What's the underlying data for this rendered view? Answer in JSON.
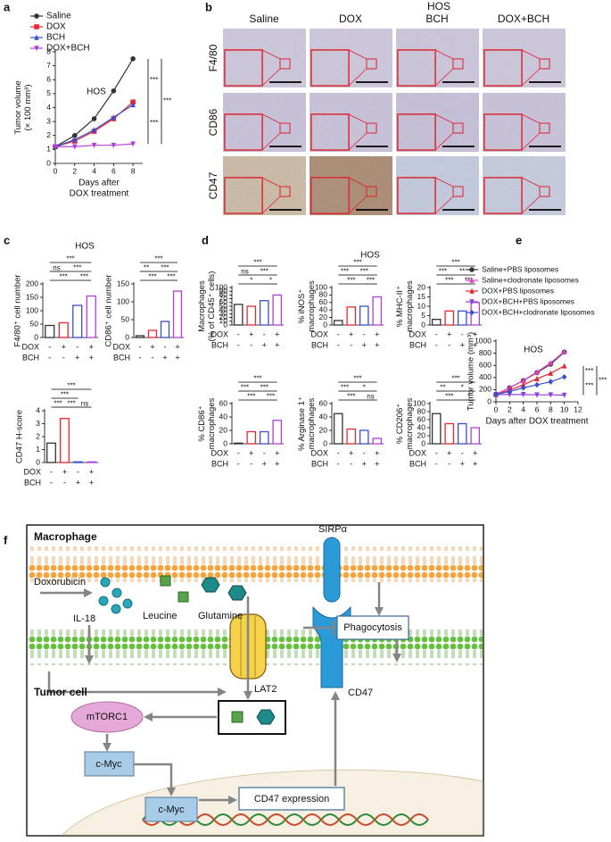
{
  "panel_labels": [
    "a",
    "b",
    "c",
    "d",
    "e",
    "f"
  ],
  "panel_titles": {
    "c": "HOS",
    "d": "HOS"
  },
  "micrographs": {
    "title": "HOS",
    "columns": [
      "Saline",
      "DOX",
      "BCH",
      "DOX+BCH"
    ],
    "rows": [
      "F4/80",
      "CD86",
      "CD47"
    ]
  },
  "chart_data": [
    {
      "type": "line",
      "title": "HOS",
      "x": [
        0,
        2,
        4,
        6,
        8
      ],
      "xlim": [
        0,
        9
      ],
      "xticks": [
        0,
        2,
        4,
        6,
        8
      ],
      "ylim": [
        0,
        8
      ],
      "yticks": [
        0,
        1,
        2,
        3,
        4,
        5,
        6,
        7,
        8
      ],
      "y_label": [
        "Tumor volume",
        "(× 100 mm³)"
      ],
      "x_label": [
        "Days after",
        "DOX treatment"
      ],
      "series": [
        {
          "name": "Saline",
          "color": "#333333",
          "marker": "circle",
          "values": [
            1.2,
            2.0,
            3.2,
            5.2,
            7.5
          ]
        },
        {
          "name": "DOX",
          "color": "#e8262d",
          "marker": "square",
          "values": [
            1.2,
            1.6,
            2.3,
            3.2,
            4.4
          ]
        },
        {
          "name": "BCH",
          "color": "#3a4fd0",
          "marker": "triangle",
          "values": [
            1.2,
            1.7,
            2.4,
            3.3,
            4.2
          ]
        },
        {
          "name": "DOX+BCH",
          "color": "#b040d8",
          "marker": "triangle-down",
          "values": [
            1.2,
            1.2,
            1.3,
            1.3,
            1.4
          ]
        }
      ],
      "significance": [
        {
          "series": [
            0,
            1
          ],
          "label": "***"
        },
        {
          "series": [
            1,
            3
          ],
          "label": "***"
        },
        {
          "series": [
            0,
            3
          ],
          "label": "***"
        }
      ]
    },
    {
      "type": "bar",
      "y_label": [
        "F4/80⁺ cell number"
      ],
      "values": [
        45,
        55,
        120,
        155
      ],
      "colors": [
        "#333333",
        "#e8262d",
        "#3a4fd0",
        "#b040d8"
      ],
      "ylim": [
        0,
        200
      ],
      "yticks": [
        0,
        50,
        100,
        150,
        200
      ],
      "factors": [
        {
          "name": "DOX",
          "signs": [
            "-",
            "+",
            "-",
            "+"
          ]
        },
        {
          "name": "BCH",
          "signs": [
            "-",
            "-",
            "+",
            "+"
          ]
        }
      ],
      "brackets": [
        {
          "from": 0,
          "to": 2,
          "label": "***"
        },
        {
          "from": 2,
          "to": 3,
          "label": "***"
        },
        {
          "from": 0,
          "to": 1,
          "label": "ns"
        },
        {
          "from": 1,
          "to": 3,
          "label": "***"
        },
        {
          "from": 0,
          "to": 3,
          "label": "***"
        }
      ]
    },
    {
      "type": "bar",
      "y_label": [
        "CD86⁺ cell number"
      ],
      "values": [
        5,
        20,
        45,
        130
      ],
      "colors": [
        "#333333",
        "#e8262d",
        "#3a4fd0",
        "#b040d8"
      ],
      "ylim": [
        0,
        150
      ],
      "yticks": [
        0,
        50,
        100,
        150
      ],
      "factors": [
        {
          "name": "DOX",
          "signs": [
            "-",
            "+",
            "-",
            "+"
          ]
        },
        {
          "name": "BCH",
          "signs": [
            "-",
            "-",
            "+",
            "+"
          ]
        }
      ],
      "brackets": [
        {
          "from": 0,
          "to": 2,
          "label": "***"
        },
        {
          "from": 2,
          "to": 3,
          "label": "***"
        },
        {
          "from": 0,
          "to": 1,
          "label": "**"
        },
        {
          "from": 1,
          "to": 3,
          "label": "***"
        },
        {
          "from": 0,
          "to": 3,
          "label": "***"
        }
      ]
    },
    {
      "type": "bar",
      "y_label": [
        "CD47 H-score"
      ],
      "values": [
        1.5,
        3.4,
        0.05,
        0.05
      ],
      "colors": [
        "#333333",
        "#e8262d",
        "#3a4fd0",
        "#b040d8"
      ],
      "ylim": [
        0,
        4
      ],
      "yticks": [
        0,
        1,
        2,
        3,
        4
      ],
      "factors": [
        {
          "name": "DOX",
          "signs": [
            "-",
            "+",
            "-",
            "+"
          ]
        },
        {
          "name": "BCH",
          "signs": [
            "-",
            "-",
            "+",
            "+"
          ]
        }
      ],
      "brackets": [
        {
          "from": 0,
          "to": 1,
          "label": "***"
        },
        {
          "from": 1,
          "to": 2,
          "label": "***"
        },
        {
          "from": 0,
          "to": 2,
          "label": "***"
        },
        {
          "from": 2,
          "to": 3,
          "label": "ns"
        },
        {
          "from": 0,
          "to": 3,
          "label": "***"
        }
      ]
    },
    {
      "type": "bar",
      "y_label": [
        "Macrophages",
        "(% of CD45⁺ cells)"
      ],
      "values": [
        55,
        50,
        65,
        80
      ],
      "colors": [
        "#333333",
        "#e8262d",
        "#3a4fd0",
        "#b040d8"
      ],
      "ylim": [
        0,
        100
      ],
      "yticks": [
        0,
        10,
        20,
        30,
        40,
        50,
        60,
        70,
        80,
        90,
        100
      ],
      "factors": [
        {
          "name": "DOX",
          "signs": [
            "-",
            "+",
            "-",
            "+"
          ]
        },
        {
          "name": "BCH",
          "signs": [
            "-",
            "-",
            "+",
            "+"
          ]
        }
      ],
      "brackets": [
        {
          "from": 0,
          "to": 2,
          "label": "*"
        },
        {
          "from": 2,
          "to": 3,
          "label": "*"
        },
        {
          "from": 0,
          "to": 1,
          "label": "ns"
        },
        {
          "from": 1,
          "to": 3,
          "label": "***"
        },
        {
          "from": 0,
          "to": 3,
          "label": "***"
        }
      ]
    },
    {
      "type": "bar",
      "y_label": [
        "% iNOS⁺",
        "macrophages"
      ],
      "values": [
        12,
        48,
        50,
        75
      ],
      "colors": [
        "#333333",
        "#e8262d",
        "#3a4fd0",
        "#b040d8"
      ],
      "ylim": [
        0,
        100
      ],
      "yticks": [
        0,
        20,
        40,
        60,
        80,
        100
      ],
      "factors": [
        {
          "name": "DOX",
          "signs": [
            "-",
            "+",
            "-",
            "+"
          ]
        },
        {
          "name": "BCH",
          "signs": [
            "-",
            "-",
            "+",
            "+"
          ]
        }
      ],
      "brackets": [
        {
          "from": 0,
          "to": 2,
          "label": "***"
        },
        {
          "from": 2,
          "to": 3,
          "label": "***"
        },
        {
          "from": 0,
          "to": 1,
          "label": "***"
        },
        {
          "from": 1,
          "to": 3,
          "label": "***"
        },
        {
          "from": 0,
          "to": 3,
          "label": "***"
        }
      ]
    },
    {
      "type": "bar",
      "y_label": [
        "% MHC-II⁺",
        "macrophages"
      ],
      "values": [
        3,
        7.5,
        7.5,
        12
      ],
      "colors": [
        "#333333",
        "#e8262d",
        "#3a4fd0",
        "#b040d8"
      ],
      "ylim": [
        0,
        20
      ],
      "yticks": [
        0,
        5,
        10,
        15,
        20
      ],
      "factors": [
        {
          "name": "DOX",
          "signs": [
            "-",
            "+",
            "-",
            "+"
          ]
        },
        {
          "name": "BCH",
          "signs": [
            "-",
            "-",
            "+",
            "+"
          ]
        }
      ],
      "brackets": [
        {
          "from": 0,
          "to": 2,
          "label": "***"
        },
        {
          "from": 2,
          "to": 3,
          "label": "***"
        },
        {
          "from": 0,
          "to": 1,
          "label": "***"
        },
        {
          "from": 1,
          "to": 3,
          "label": "**"
        },
        {
          "from": 0,
          "to": 3,
          "label": "***"
        }
      ]
    },
    {
      "type": "bar",
      "y_label": [
        "% CD86⁺",
        "macrophages"
      ],
      "values": [
        1,
        18,
        18,
        35
      ],
      "colors": [
        "#333333",
        "#e8262d",
        "#3a4fd0",
        "#b040d8"
      ],
      "ylim": [
        0,
        60
      ],
      "yticks": [
        0,
        20,
        40,
        60
      ],
      "factors": [
        {
          "name": "DOX",
          "signs": [
            "-",
            "+",
            "-",
            "+"
          ]
        },
        {
          "name": "BCH",
          "signs": [
            "-",
            "-",
            "+",
            "+"
          ]
        }
      ],
      "brackets": [
        {
          "from": 0,
          "to": 2,
          "label": "***"
        },
        {
          "from": 2,
          "to": 3,
          "label": "***"
        },
        {
          "from": 0,
          "to": 1,
          "label": "***"
        },
        {
          "from": 1,
          "to": 3,
          "label": "***"
        },
        {
          "from": 0,
          "to": 3,
          "label": "***"
        }
      ]
    },
    {
      "type": "bar",
      "y_label": [
        "% Arginase 1⁺",
        "macrophages"
      ],
      "values": [
        45,
        22,
        20,
        8
      ],
      "colors": [
        "#333333",
        "#e8262d",
        "#3a4fd0",
        "#b040d8"
      ],
      "ylim": [
        0,
        60
      ],
      "yticks": [
        0,
        20,
        40,
        60
      ],
      "factors": [
        {
          "name": "DOX",
          "signs": [
            "-",
            "+",
            "-",
            "+"
          ]
        },
        {
          "name": "BCH",
          "signs": [
            "-",
            "-",
            "+",
            "+"
          ]
        }
      ],
      "brackets": [
        {
          "from": 0,
          "to": 2,
          "label": "***"
        },
        {
          "from": 2,
          "to": 3,
          "label": "ns"
        },
        {
          "from": 0,
          "to": 1,
          "label": "***"
        },
        {
          "from": 1,
          "to": 3,
          "label": "*"
        },
        {
          "from": 0,
          "to": 3,
          "label": "***"
        }
      ]
    },
    {
      "type": "bar",
      "y_label": [
        "% CD206⁺",
        "macrophages"
      ],
      "values": [
        75,
        50,
        50,
        40
      ],
      "colors": [
        "#333333",
        "#e8262d",
        "#3a4fd0",
        "#b040d8"
      ],
      "ylim": [
        0,
        100
      ],
      "yticks": [
        0,
        20,
        40,
        60,
        80,
        100
      ],
      "factors": [
        {
          "name": "DOX",
          "signs": [
            "-",
            "+",
            "-",
            "+"
          ]
        },
        {
          "name": "BCH",
          "signs": [
            "-",
            "-",
            "+",
            "+"
          ]
        }
      ],
      "brackets": [
        {
          "from": 0,
          "to": 2,
          "label": "***"
        },
        {
          "from": 2,
          "to": 3,
          "label": "*"
        },
        {
          "from": 0,
          "to": 1,
          "label": "**"
        },
        {
          "from": 1,
          "to": 3,
          "label": "*"
        },
        {
          "from": 0,
          "to": 3,
          "label": "***"
        }
      ]
    },
    {
      "type": "line",
      "title": "HOS",
      "x": [
        0,
        2,
        4,
        6,
        8,
        10
      ],
      "xlim": [
        0,
        12
      ],
      "xticks": [
        0,
        2,
        4,
        6,
        8,
        10,
        12
      ],
      "ylim": [
        0,
        1000
      ],
      "yticks": [
        0,
        200,
        400,
        600,
        800,
        1000
      ],
      "y_label": [
        "Tumor volume (mm³)"
      ],
      "x_label": [
        "Days after DOX treatment"
      ],
      "series": [
        {
          "name": "Saline+PBS liposomes",
          "color": "#333333",
          "marker": "circle",
          "values": [
            120,
            230,
            350,
            480,
            620,
            820
          ]
        },
        {
          "name": "Saline+clodronate liposomes",
          "color": "#e040c8",
          "marker": "triangle",
          "values": [
            120,
            230,
            350,
            490,
            640,
            830
          ]
        },
        {
          "name": "DOX+PBS liposomes",
          "color": "#e8262d",
          "marker": "triangle",
          "values": [
            120,
            190,
            280,
            380,
            470,
            590
          ]
        },
        {
          "name": "DOX+BCH+PBS liposomes",
          "color": "#9040d8",
          "marker": "triangle-down",
          "values": [
            120,
            120,
            120,
            115,
            115,
            110
          ]
        },
        {
          "name": "DOX+BCH+clodronate liposomes",
          "color": "#3a4fd0",
          "marker": "diamond",
          "values": [
            120,
            170,
            230,
            280,
            330,
            410
          ]
        }
      ],
      "significance": [
        {
          "series": [
            2,
            4
          ],
          "label": "***"
        },
        {
          "series": [
            4,
            3
          ],
          "label": "***"
        },
        {
          "series": [
            2,
            3
          ],
          "label": "***"
        }
      ]
    }
  ],
  "diagram": {
    "nodes": [
      "Macrophage",
      "SIRPα",
      "Doxorubicin",
      "IL-18",
      "Leucine",
      "Glutamine",
      "Phagocytosis",
      "Tumor cell",
      "LAT2",
      "CD47",
      "mTORC1",
      "c-Myc",
      "c-Myc",
      "CD47 expression"
    ]
  }
}
